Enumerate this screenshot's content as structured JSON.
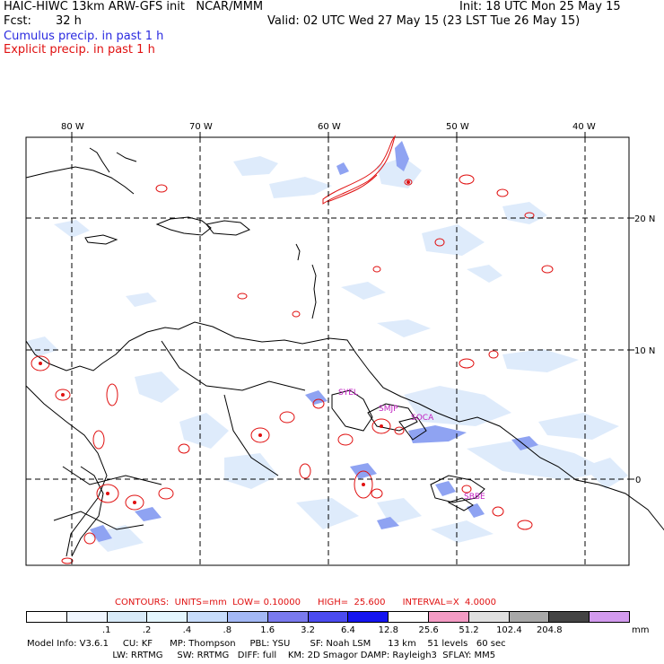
{
  "header": {
    "title": "HAIC-HIWC 13km ARW-GFS init   NCAR/MMM",
    "init": "Init: 18 UTC Mon 25 May 15",
    "fcst_label": "Fcst:",
    "fcst_value": "32 h",
    "valid": "Valid: 02 UTC Wed 27 May 15 (23 LST Tue 26 May 15)",
    "legend_cumulus": "Cumulus precip. in past 1 h",
    "legend_explicit": "Explicit precip. in past 1 h"
  },
  "map": {
    "lon_labels": [
      "80 W",
      "70 W",
      "60 W",
      "50 W",
      "40 W"
    ],
    "lat_labels": [
      "20 N",
      "10 N",
      "0"
    ],
    "station_labels": [
      "SYEL",
      "SMJP",
      "SOCA",
      "SBBE"
    ]
  },
  "contours": {
    "text": "CONTOURS:  UNITS=mm  LOW= 0.10000      HIGH=  25.600      INTERVAL=X  4.0000"
  },
  "colorbar": {
    "ticks": [
      ".1",
      ".2",
      ".4",
      ".8",
      "1.6",
      "3.2",
      "6.4",
      "12.8",
      "25.6",
      "51.2",
      "102.4",
      "204.8"
    ],
    "unit": "mm",
    "colors": [
      "#ffffff",
      "#f0f6ff",
      "#d8eaf8",
      "#e4f6ff",
      "#c7dcfb",
      "#a3b8f5",
      "#7a7aee",
      "#4b4bf0",
      "#1414f0",
      "#ffffff",
      "#f49bc4",
      "#e0e0e0",
      "#a8a8a8",
      "#444444",
      "#d29aee"
    ]
  },
  "model_info": {
    "line1": "Model Info: V3.6.1     CU: KF      MP: Thompson     PBL: YSU       SF: Noah LSM      13 km    51 levels   60 sec",
    "line2": "                              LW: RRTMG     SW: RRTMG   DIFF: full    KM: 2D Smagor DAMP: Rayleigh3  SFLAY: MM5"
  }
}
